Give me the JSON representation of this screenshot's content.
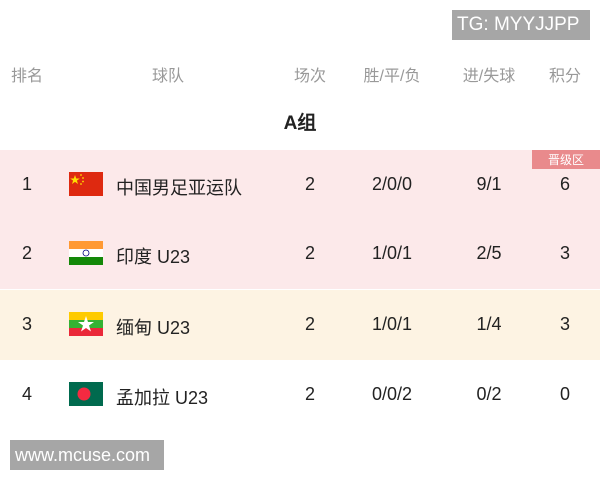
{
  "watermarks": {
    "top": "TG: MYYJJPP",
    "bottom": "www.mcuse.com"
  },
  "headers": {
    "rank": "排名",
    "team": "球队",
    "played": "场次",
    "wdl": "胜/平/负",
    "goals": "进/失球",
    "points": "积分"
  },
  "group_title": "A组",
  "qualify_badge": "晋级区",
  "colors": {
    "qualify_row": "#fce9ea",
    "third_row": "#fdf3e3",
    "badge": "#e98a8c"
  },
  "rows": [
    {
      "rank": "1",
      "flag": "china-flag-icon",
      "team": "中国男足亚运队",
      "played": "2",
      "wdl": "2/0/0",
      "goals": "9/1",
      "points": "6"
    },
    {
      "rank": "2",
      "flag": "india-flag-icon",
      "team": "印度 U23",
      "played": "2",
      "wdl": "1/0/1",
      "goals": "2/5",
      "points": "3"
    },
    {
      "rank": "3",
      "flag": "myanmar-flag-icon",
      "team": "缅甸 U23",
      "played": "2",
      "wdl": "1/0/1",
      "goals": "1/4",
      "points": "3"
    },
    {
      "rank": "4",
      "flag": "bangladesh-flag-icon",
      "team": "孟加拉 U23",
      "played": "2",
      "wdl": "0/0/2",
      "goals": "0/2",
      "points": "0"
    }
  ]
}
